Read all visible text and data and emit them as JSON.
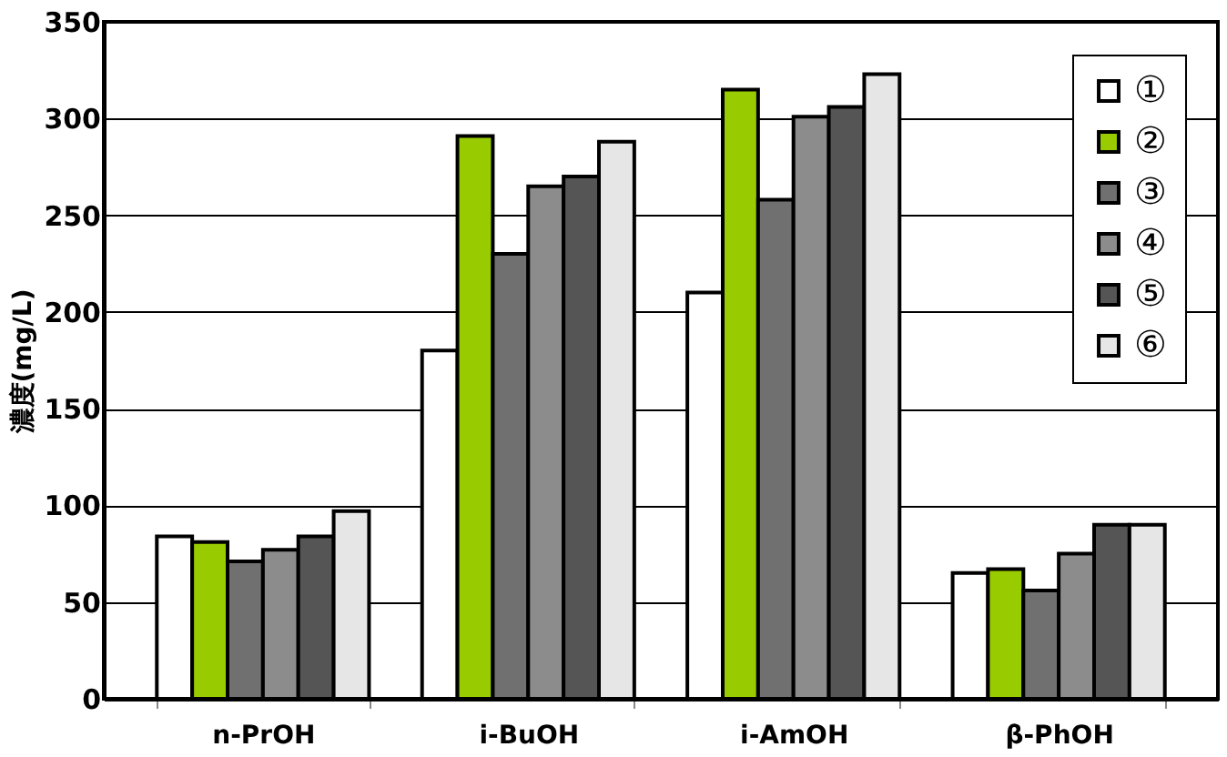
{
  "chart_data": {
    "type": "bar",
    "ylabel": "濃度(mg/L)",
    "categories": [
      "n-PrOH",
      "i-BuOH",
      "i-AmOH",
      "β-PhOH"
    ],
    "series": [
      {
        "name": "①",
        "color": "#ffffff",
        "values": [
          84,
          180,
          210,
          65
        ]
      },
      {
        "name": "②",
        "color": "#99cc00",
        "values": [
          81,
          291,
          315,
          67
        ]
      },
      {
        "name": "③",
        "color": "#707070",
        "values": [
          71,
          230,
          258,
          56
        ]
      },
      {
        "name": "④",
        "color": "#8c8c8c",
        "values": [
          77,
          265,
          301,
          75
        ]
      },
      {
        "name": "⑤",
        "color": "#555555",
        "values": [
          84,
          270,
          306,
          90
        ]
      },
      {
        "name": "⑥",
        "color": "#e6e6e6",
        "values": [
          97,
          288,
          323,
          90
        ]
      }
    ],
    "ylim": [
      0,
      350
    ],
    "yticks": [
      0,
      50,
      100,
      150,
      200,
      250,
      300,
      350
    ],
    "grid": "y",
    "legend": "top right"
  }
}
